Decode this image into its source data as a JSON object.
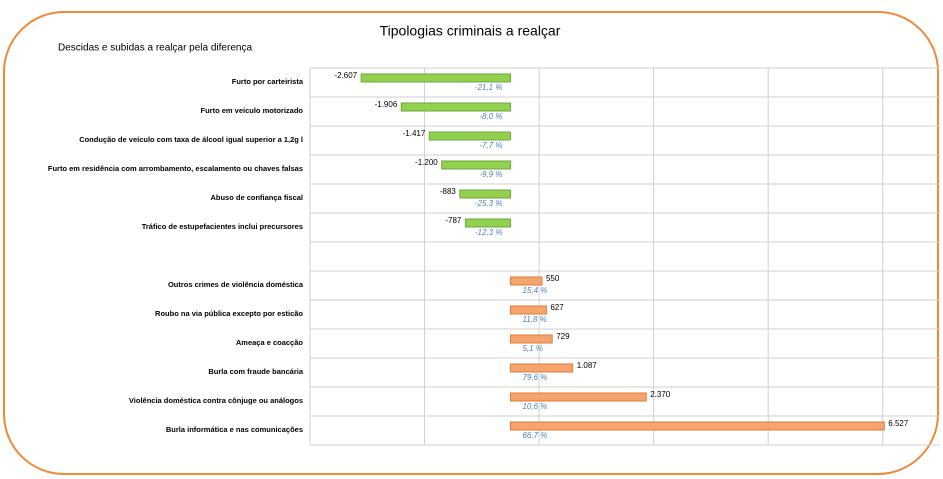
{
  "chart_data": {
    "type": "bar",
    "orientation": "horizontal",
    "title": "Tipologias criminais a realçar",
    "subtitle": "Descidas e subidas a realçar pela diferença",
    "categories": [
      "Furto por carteirista",
      "Furto em veículo motorizado",
      "Condução de veículo com taxa de álcool igual superior a 1,2g l",
      "Furto em residência com arrombamento, escalamento ou chaves falsas",
      "Abuso de confiança fiscal",
      "Tráfico de estupefacientes  inclui precursores",
      null,
      "Outros crimes de violência doméstica",
      "Roubo na via pública  excepto por esticão",
      "Ameaça e coacção",
      "Burla com fraude bancária",
      "Violência doméstica contra cônjuge ou análogos",
      "Burla informática e nas comunicações"
    ],
    "values": [
      -2607,
      -1906,
      -1417,
      -1200,
      -883,
      -787,
      null,
      550,
      627,
      729,
      1087,
      2370,
      6527
    ],
    "value_labels": [
      "-2.607",
      "-1.906",
      "-1.417",
      "-1.200",
      "-883",
      "-787",
      null,
      "550",
      "627",
      "729",
      "1.087",
      "2.370",
      "6.527"
    ],
    "changes": [
      -21.1,
      -8.0,
      -7.7,
      -9.9,
      -25.3,
      -12.3,
      null,
      15.4,
      11.8,
      5.1,
      79.6,
      10.6,
      66.7
    ],
    "change_labels": [
      "-21,1 %",
      "-8,0 %",
      "-7,7 %",
      "-9,9 %",
      "-25,3 %",
      "-12,3 %",
      null,
      "15,4 %",
      "11,8 %",
      "5,1 %",
      "79,6 %",
      "10,6 %",
      "66,7 %"
    ],
    "negative_color": "#92d050",
    "positive_color": "#f4a46c",
    "xlim": [
      -3500,
      7500
    ],
    "xgrid": [
      -3500,
      -1500,
      500,
      2500,
      4500,
      6500
    ],
    "grid": true
  }
}
